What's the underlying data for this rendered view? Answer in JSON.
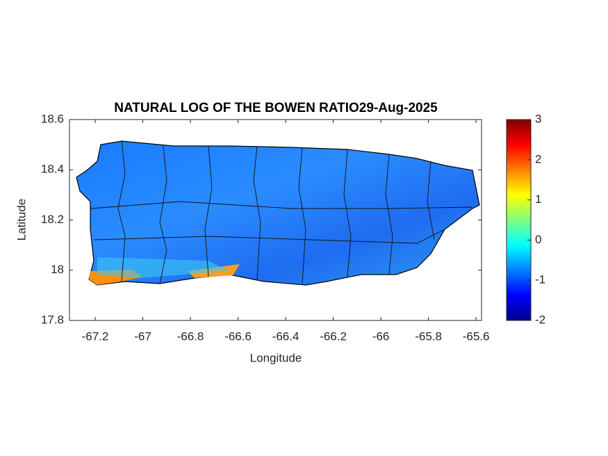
{
  "chart_data": {
    "type": "heatmap-map",
    "title": "NATURAL LOG OF THE BOWEN RATIO29-Aug-2025",
    "x_label": "Longitude",
    "y_label": "Latitude",
    "xlim": [
      -67.308,
      -65.577
    ],
    "ylim": [
      17.8,
      18.6
    ],
    "xticks": [
      -67.2,
      -67,
      -66.8,
      -66.6,
      -66.4,
      -66.2,
      -66,
      -65.8,
      -65.6
    ],
    "yticks": [
      17.8,
      18,
      18.2,
      18.4,
      18.6
    ],
    "clim": [
      -2,
      3
    ],
    "cticks": [
      -2,
      -1,
      0,
      1,
      2,
      3
    ],
    "colormap": "jet"
  }
}
